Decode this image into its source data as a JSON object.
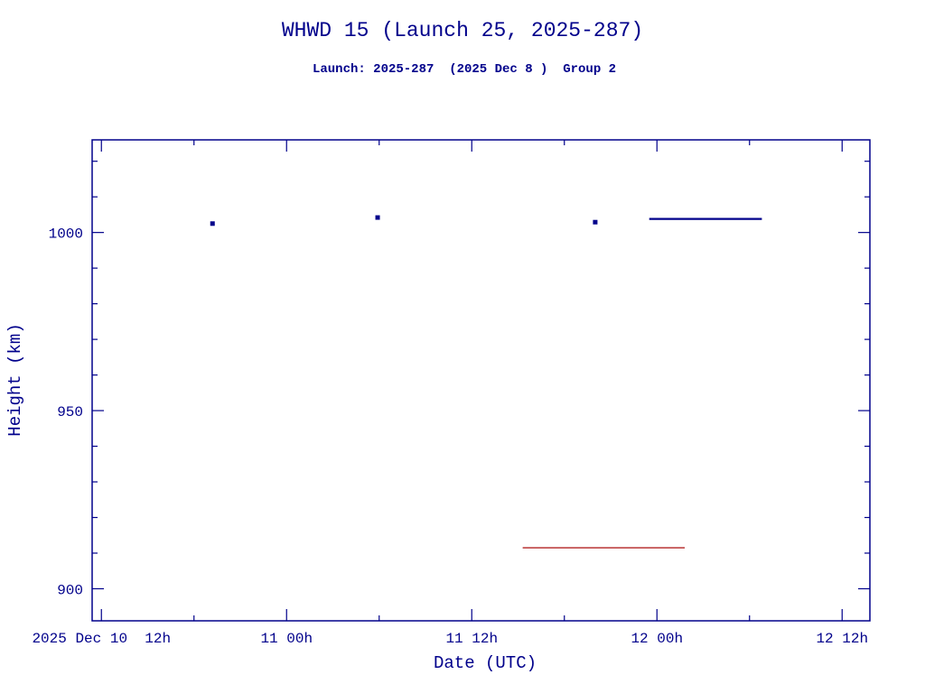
{
  "chart_data": {
    "type": "scatter",
    "title": "WHWD 15 (Launch 25, 2025-287)",
    "subtitle": "Launch: 2025-287  (2025 Dec 8 )  Group 2",
    "xlabel": "Date (UTC)",
    "ylabel": "Height (km)",
    "x_unit": "hours since 2025 Dec 10 12:00 UTC",
    "xlim": [
      -0.6,
      49.8
    ],
    "ylim": [
      891,
      1026
    ],
    "grid": false,
    "legend": "none",
    "x_ticks": [
      {
        "value": 0,
        "label": "2025 Dec 10  12h"
      },
      {
        "value": 12,
        "label": "11 00h"
      },
      {
        "value": 24,
        "label": "11 12h"
      },
      {
        "value": 36,
        "label": "12 00h"
      },
      {
        "value": 48,
        "label": "12 12h"
      }
    ],
    "x_minor_step": 6,
    "y_ticks": [
      {
        "value": 900,
        "label": "900"
      },
      {
        "value": 950,
        "label": "950"
      },
      {
        "value": 1000,
        "label": "1000"
      }
    ],
    "y_minor_step": 10,
    "points": [
      {
        "x": 7.2,
        "y": 1002.5,
        "color": "#00008b"
      },
      {
        "x": 17.9,
        "y": 1004.2,
        "color": "#00008b"
      },
      {
        "x": 32.0,
        "y": 1002.9,
        "color": "#00008b"
      }
    ],
    "segments": [
      {
        "x1": 35.5,
        "x2": 42.8,
        "y": 1003.8,
        "color": "#00008b",
        "width": 2.2
      },
      {
        "x1": 27.3,
        "x2": 37.8,
        "y": 911.5,
        "color": "#b22222",
        "width": 1.4
      }
    ],
    "colors": {
      "axis": "#00008b",
      "title": "#00008b",
      "background": "#ffffff",
      "series_main": "#00008b",
      "series_secondary": "#b22222"
    }
  }
}
